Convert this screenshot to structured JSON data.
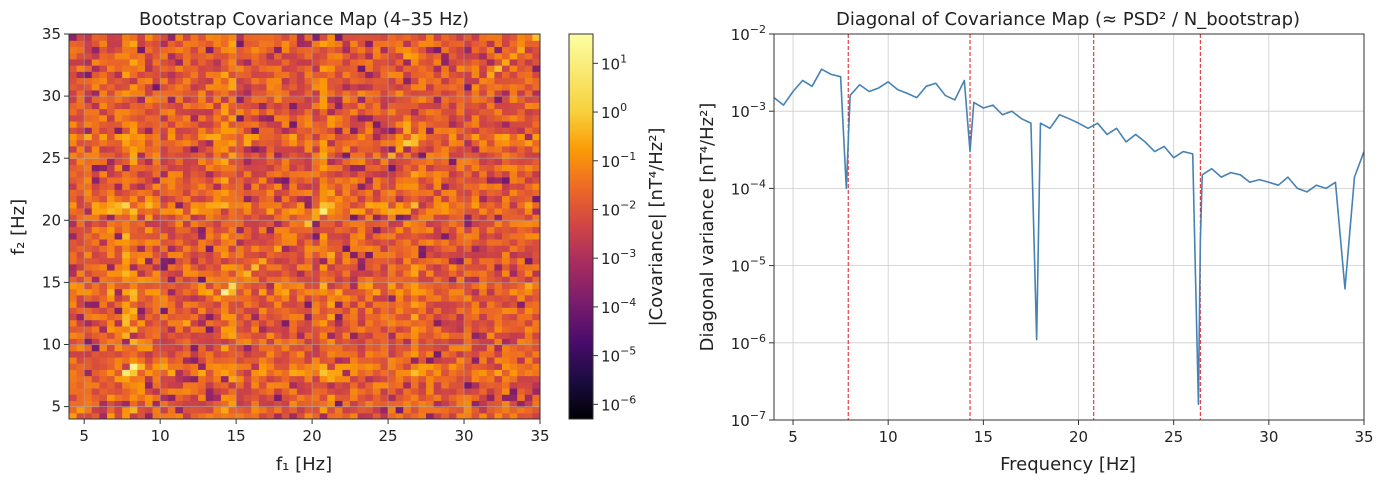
{
  "chart_data": [
    {
      "type": "heatmap",
      "title": "Bootstrap Covariance Map (4–35 Hz)",
      "xlabel": "f₁ [Hz]",
      "ylabel": "f₂ [Hz]",
      "xlim": [
        4,
        35
      ],
      "ylim": [
        4,
        35
      ],
      "xticks": [
        5,
        10,
        15,
        20,
        25,
        30,
        35
      ],
      "yticks": [
        5,
        10,
        15,
        20,
        25,
        30,
        35
      ],
      "grid": true,
      "colormap": "inferno",
      "colorbar": {
        "label": "|Covariance| [nT⁴/Hz²]",
        "scale": "log",
        "range": [
          5e-07,
          40
        ],
        "ticks": [
          {
            "base": "10",
            "exp": "1",
            "value": 10
          },
          {
            "base": "10",
            "exp": "0",
            "value": 1
          },
          {
            "base": "10",
            "exp": "−1",
            "value": 0.1
          },
          {
            "base": "10",
            "exp": "−2",
            "value": 0.01
          },
          {
            "base": "10",
            "exp": "−3",
            "value": 0.001
          },
          {
            "base": "10",
            "exp": "−4",
            "value": 0.0001
          },
          {
            "base": "10",
            "exp": "−5",
            "value": 1e-05
          },
          {
            "base": "10",
            "exp": "−6",
            "value": 1e-06
          }
        ]
      },
      "features": {
        "diagonal_ridge": true,
        "bright_lines_hz": [
          7.8,
          14.3,
          20.8,
          26.4
        ],
        "typical_log10_value": -1.3
      }
    },
    {
      "type": "line",
      "title": "Diagonal of Covariance Map (≈ PSD² / N_bootstrap)",
      "xlabel": "Frequency [Hz]",
      "ylabel": "Diagonal variance [nT⁴/Hz²]",
      "xlim": [
        4,
        35
      ],
      "ylim": [
        1e-07,
        0.01
      ],
      "yscale": "log",
      "grid": true,
      "xticks": [
        5,
        10,
        15,
        20,
        25,
        30,
        35
      ],
      "yticks": [
        {
          "base": "10",
          "exp": "−2",
          "value": 0.01
        },
        {
          "base": "10",
          "exp": "−3",
          "value": 0.001
        },
        {
          "base": "10",
          "exp": "−4",
          "value": 0.0001
        },
        {
          "base": "10",
          "exp": "−5",
          "value": 1e-05
        },
        {
          "base": "10",
          "exp": "−6",
          "value": 1e-06
        },
        {
          "base": "10",
          "exp": "−7",
          "value": 1e-07
        }
      ],
      "series_color": "#4682b4",
      "vline_color": "#e31a1c",
      "vlines": [
        7.9,
        14.3,
        20.8,
        26.4
      ],
      "series": [
        {
          "x": [
            4.0,
            4.5,
            5.0,
            5.5,
            6.0,
            6.5,
            7.0,
            7.5,
            7.8,
            8.0,
            8.5,
            9.0,
            9.5,
            10.0,
            10.5,
            11.0,
            11.5,
            12.0,
            12.5,
            13.0,
            13.5,
            14.0,
            14.3,
            14.5,
            15.0,
            15.5,
            16.0,
            16.5,
            17.0,
            17.5,
            17.8,
            18.0,
            18.5,
            19.0,
            19.5,
            20.0,
            20.5,
            21.0,
            21.5,
            22.0,
            22.5,
            23.0,
            23.5,
            24.0,
            24.5,
            25.0,
            25.5,
            26.0,
            26.3,
            26.4,
            26.5,
            27.0,
            27.5,
            28.0,
            28.5,
            29.0,
            29.5,
            30.0,
            30.5,
            31.0,
            31.5,
            32.0,
            32.5,
            33.0,
            33.5,
            34.0,
            34.5,
            35.0
          ],
          "y": [
            0.0015,
            0.0012,
            0.0018,
            0.0025,
            0.0021,
            0.0035,
            0.003,
            0.0028,
            0.0001,
            0.0016,
            0.0022,
            0.0018,
            0.002,
            0.0024,
            0.0019,
            0.0017,
            0.0015,
            0.0021,
            0.0023,
            0.0016,
            0.0014,
            0.0025,
            0.0003,
            0.0013,
            0.0011,
            0.0012,
            0.0009,
            0.001,
            0.0008,
            0.0007,
            1.1e-06,
            0.0007,
            0.0006,
            0.0009,
            0.0008,
            0.0007,
            0.0006,
            0.0007,
            0.0005,
            0.0006,
            0.0004,
            0.0005,
            0.0004,
            0.0003,
            0.00035,
            0.00025,
            0.0003,
            0.00028,
            1.6e-07,
            2e-05,
            0.00015,
            0.00018,
            0.00014,
            0.00016,
            0.00015,
            0.00012,
            0.00013,
            0.00012,
            0.00011,
            0.00014,
            0.0001,
            9e-05,
            0.00011,
            0.0001,
            0.00012,
            5e-06,
            0.00014,
            0.0003
          ]
        }
      ]
    }
  ]
}
